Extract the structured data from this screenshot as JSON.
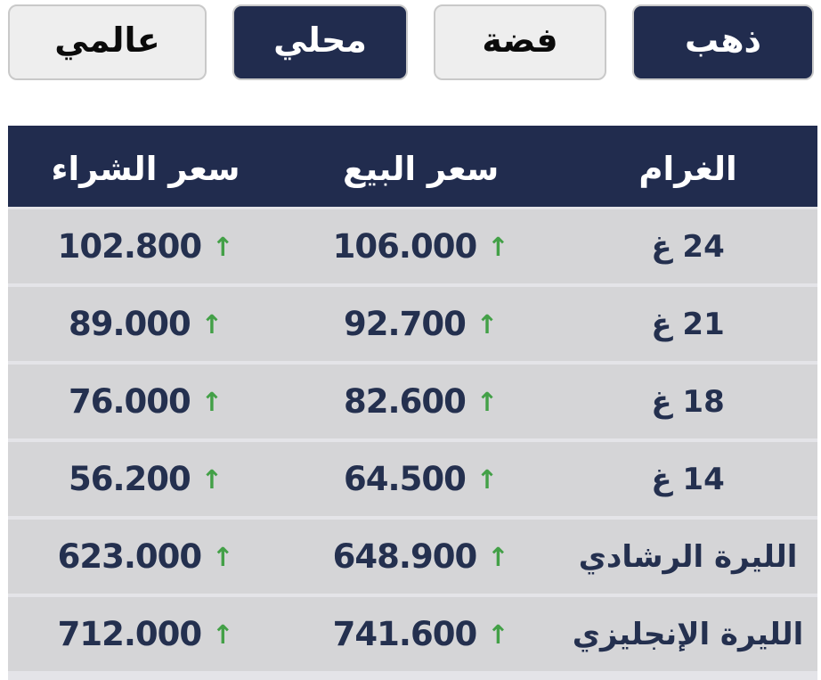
{
  "toolbar": {
    "buttons": [
      {
        "id": "gold",
        "label": "ذهب",
        "active": true
      },
      {
        "id": "silver",
        "label": "فضة",
        "active": false
      },
      {
        "id": "local",
        "label": "محلي",
        "active": true
      },
      {
        "id": "global",
        "label": "عالمي",
        "active": false
      }
    ]
  },
  "table": {
    "headers": {
      "gram": "الغرام",
      "sell": "سعر البيع",
      "buy": "سعر الشراء"
    },
    "trend_arrow": "↑",
    "rows": [
      {
        "gram": "24 غ",
        "sell": "106.000",
        "sell_trend": "up",
        "buy": "102.800",
        "buy_trend": "up"
      },
      {
        "gram": "21 غ",
        "sell": "92.700",
        "sell_trend": "up",
        "buy": "89.000",
        "buy_trend": "up"
      },
      {
        "gram": "18 غ",
        "sell": "82.600",
        "sell_trend": "up",
        "buy": "76.000",
        "buy_trend": "up"
      },
      {
        "gram": "14 غ",
        "sell": "64.500",
        "sell_trend": "up",
        "buy": "56.200",
        "buy_trend": "up"
      },
      {
        "gram": "الليرة الرشادي",
        "sell": "648.900",
        "sell_trend": "up",
        "buy": "623.000",
        "buy_trend": "up"
      },
      {
        "gram": "الليرة الإنجليزي",
        "sell": "741.600",
        "sell_trend": "up",
        "buy": "712.000",
        "buy_trend": "up"
      }
    ]
  },
  "colors": {
    "navy": "#212c4e",
    "row_bg": "#d5d5d7",
    "separator": "#e4e4e8",
    "trend_up_green": "#43a047",
    "inactive_button_bg": "#eeeeee",
    "button_border": "#c9c9c9",
    "number_text": "#24304f"
  }
}
